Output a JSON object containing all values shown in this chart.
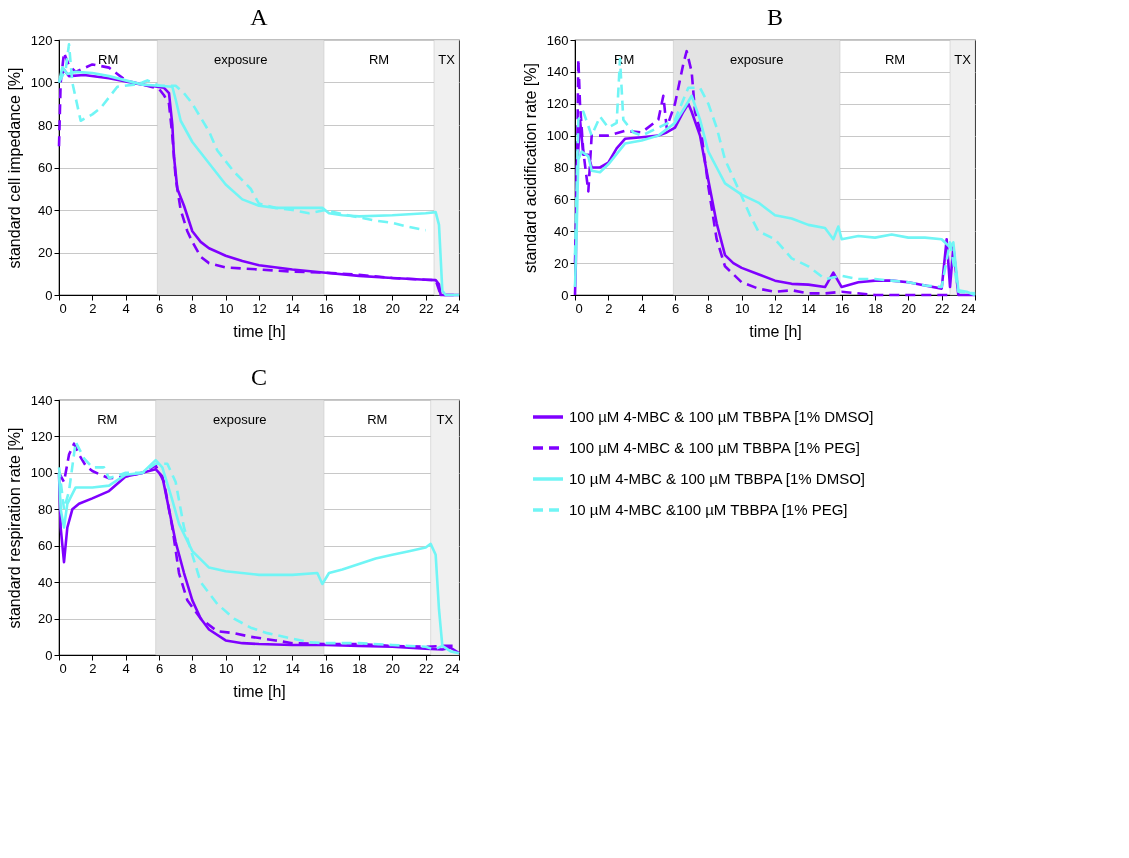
{
  "chart_data": [
    {
      "type": "line",
      "title": "A",
      "annotations": [
        "RM",
        "RM"
      ],
      "xlabel": "time [h]",
      "ylabel": "standard cell impedance [%]",
      "xlim": [
        0,
        24
      ],
      "xticks": [
        0,
        2,
        4,
        6,
        8,
        10,
        12,
        14,
        16,
        18,
        20,
        22,
        24
      ],
      "ylim": [
        0,
        120
      ],
      "yticks": [
        0,
        20,
        40,
        60,
        80,
        100,
        120
      ],
      "grid": "y",
      "legend": false,
      "bands": [
        {
          "axis": "x",
          "from": 5.9,
          "to": 15.9,
          "label": "exposure",
          "color": "#e3e3e3"
        },
        {
          "axis": "x",
          "from": 22.5,
          "to": 24,
          "label": "TX",
          "color": "#f0f0f0"
        }
      ],
      "series": [
        {
          "color": "#7f00ff",
          "line_style": "solid",
          "x": [
            0,
            0.3,
            0.6,
            1.5,
            3,
            4,
            5,
            5.5,
            6.3,
            6.6,
            6.8,
            6.9,
            7.1,
            7.5,
            8,
            8.5,
            9,
            10,
            11,
            12,
            14,
            16,
            18,
            20,
            22,
            22.6,
            22.8,
            22.9,
            24
          ],
          "values": [
            100,
            106,
            103,
            103.5,
            102,
            100.5,
            99,
            98.5,
            97.5,
            95,
            80,
            65,
            50,
            42,
            30,
            25,
            22,
            18.5,
            16,
            14,
            12,
            10.5,
            9,
            8,
            7.2,
            7,
            5,
            0,
            0
          ]
        },
        {
          "color": "#7f00ff",
          "line_style": "dashed",
          "x": [
            0,
            0.1,
            0.3,
            0.6,
            1,
            2,
            3,
            3.5,
            4,
            5,
            5.5,
            6,
            6.3,
            6.6,
            6.8,
            7,
            7.3,
            7.7,
            8,
            8.5,
            9,
            10,
            11,
            12,
            14,
            16,
            18,
            20,
            22,
            22.6,
            22.9,
            24
          ],
          "values": [
            70,
            100,
            114,
            108,
            105,
            108.5,
            107,
            104,
            101,
            99,
            98,
            97,
            94,
            90,
            75,
            55,
            40,
            30,
            25,
            18,
            15,
            13,
            12.5,
            12,
            11,
            10.5,
            9.5,
            8,
            7.2,
            7,
            0,
            0
          ]
        },
        {
          "color": "#70f5f5",
          "line_style": "solid",
          "x": [
            0,
            0.2,
            0.5,
            1,
            2,
            3,
            4,
            5,
            6,
            6.8,
            7,
            7.3,
            8,
            9,
            10,
            11,
            12,
            13,
            14,
            15,
            15.8,
            16.2,
            17,
            18,
            20,
            22,
            22.6,
            22.8,
            23,
            23.2,
            24
          ],
          "values": [
            100,
            107,
            104,
            105,
            104.5,
            103,
            101,
            99,
            98.5,
            98,
            92,
            82,
            72,
            62,
            52,
            45,
            42,
            41,
            41,
            41,
            41,
            38.5,
            37.5,
            37,
            37.5,
            38.5,
            39,
            33,
            2,
            0,
            0
          ]
        },
        {
          "color": "#70f5f5",
          "line_style": "dashed",
          "x": [
            0,
            0.4,
            0.6,
            0.8,
            1.3,
            2,
            2.5,
            3.5,
            4.5,
            5,
            5.3,
            6,
            7,
            7.5,
            8,
            9,
            9.5,
            10.5,
            11.5,
            12,
            13,
            14,
            15,
            16,
            17,
            18,
            19,
            20,
            21,
            22
          ],
          "values": [
            100,
            106,
            118,
            100,
            82,
            85,
            88,
            98,
            99,
            100,
            101,
            98.5,
            98.5,
            95,
            90,
            77,
            68,
            58,
            50,
            43,
            41,
            40,
            38.5,
            40,
            38,
            36.5,
            35,
            34,
            32,
            30.5
          ]
        }
      ]
    },
    {
      "type": "line",
      "title": "B",
      "annotations": [
        "RM",
        "RM"
      ],
      "xlabel": "time [h]",
      "ylabel": "standard acidification rate [%]",
      "xlim": [
        0,
        24
      ],
      "xticks": [
        0,
        2,
        4,
        6,
        8,
        10,
        12,
        14,
        16,
        18,
        20,
        22,
        24
      ],
      "ylim": [
        0,
        160
      ],
      "yticks": [
        0,
        20,
        40,
        60,
        80,
        100,
        120,
        140,
        160
      ],
      "grid": "y",
      "legend": false,
      "bands": [
        {
          "axis": "x",
          "from": 5.9,
          "to": 15.9,
          "label": "exposure",
          "color": "#e3e3e3"
        },
        {
          "axis": "x",
          "from": 22.5,
          "to": 24,
          "label": "TX",
          "color": "#f0f0f0"
        }
      ],
      "series": [
        {
          "color": "#7f00ff",
          "line_style": "solid",
          "x": [
            0,
            0.05,
            0.1,
            0.2,
            0.3,
            0.5,
            0.8,
            1,
            1.5,
            2,
            2.5,
            3,
            4,
            5,
            5.5,
            6,
            6.5,
            6.8,
            7,
            7.5,
            8,
            8.5,
            9,
            9.5,
            10,
            11,
            12,
            13,
            14,
            15,
            15.5,
            16,
            17,
            18,
            19,
            20,
            21,
            22,
            22.3,
            22.5,
            22.7,
            23,
            24
          ],
          "values": [
            0,
            20,
            80,
            92,
            110,
            88,
            88,
            80,
            80,
            83,
            92,
            98,
            99,
            100,
            102,
            105,
            115,
            120,
            115,
            100,
            72,
            45,
            25,
            20,
            17,
            13,
            9,
            7,
            6.5,
            5,
            14,
            5,
            8,
            9,
            9,
            8,
            6,
            4,
            35,
            5,
            30,
            0,
            0
          ]
        },
        {
          "color": "#7f00ff",
          "line_style": "dashed",
          "x": [
            0,
            0.1,
            0.2,
            0.3,
            0.5,
            0.8,
            1,
            1.5,
            2,
            3,
            4,
            5,
            5.3,
            5.5,
            6,
            6.5,
            6.7,
            7,
            7.2,
            7.6,
            8,
            8.5,
            9,
            10,
            11,
            12,
            13,
            14,
            15,
            16,
            18,
            20,
            22,
            22.5
          ],
          "values": [
            20,
            60,
            148,
            120,
            90,
            65,
            100,
            100,
            100,
            103,
            102,
            110,
            125,
            105,
            120,
            145,
            153,
            140,
            115,
            100,
            68,
            35,
            18,
            8,
            4,
            2,
            3,
            1,
            1,
            2,
            0,
            0,
            0,
            0
          ]
        },
        {
          "color": "#70f5f5",
          "line_style": "solid",
          "x": [
            0,
            0.1,
            0.2,
            0.4,
            0.8,
            1,
            1.5,
            2,
            3,
            4,
            5,
            6,
            6.6,
            7,
            7.5,
            8,
            8.5,
            9,
            10,
            11,
            12,
            13,
            14,
            15,
            15.5,
            15.8,
            16,
            17,
            18,
            19,
            20,
            21,
            22,
            22.5,
            22.7,
            23,
            23.5,
            24
          ],
          "values": [
            5,
            40,
            85,
            90,
            87,
            78,
            77,
            82,
            95,
            97,
            100,
            108,
            118,
            125,
            110,
            90,
            80,
            70,
            63,
            58,
            50,
            48,
            44,
            42,
            35,
            43,
            35,
            37,
            36,
            38,
            36,
            36,
            35,
            30,
            33,
            3,
            2,
            0
          ]
        },
        {
          "color": "#70f5f5",
          "line_style": "dashed",
          "x": [
            0,
            0.2,
            0.5,
            1,
            1.5,
            2,
            2.5,
            2.7,
            2.9,
            3.5,
            4,
            5,
            6,
            6.8,
            7.5,
            8,
            8.5,
            9,
            10,
            10.5,
            11,
            12,
            13,
            14,
            15,
            16,
            17,
            18,
            19,
            20,
            21,
            22,
            22.5,
            23,
            24
          ],
          "values": [
            25,
            110,
            115,
            100,
            112,
            105,
            108,
            148,
            110,
            102,
            100,
            105,
            110,
            130,
            130,
            120,
            105,
            85,
            62,
            50,
            40,
            35,
            23,
            18,
            10,
            12,
            10,
            10,
            9,
            8,
            6,
            5,
            33,
            2,
            1
          ]
        }
      ]
    },
    {
      "type": "line",
      "title": "C",
      "annotations": [
        "RM",
        "RM"
      ],
      "xlabel": "time [h]",
      "ylabel": "standard respiration rate [%]",
      "xlim": [
        0,
        24
      ],
      "xticks": [
        0,
        2,
        4,
        6,
        8,
        10,
        12,
        14,
        16,
        18,
        20,
        22,
        24
      ],
      "ylim": [
        0,
        140
      ],
      "yticks": [
        0,
        20,
        40,
        60,
        80,
        100,
        120,
        140
      ],
      "grid": "y",
      "legend": "right",
      "bands": [
        {
          "axis": "x",
          "from": 5.8,
          "to": 15.9,
          "label": "exposure",
          "color": "#e3e3e3"
        },
        {
          "axis": "x",
          "from": 22.3,
          "to": 24,
          "label": "TX",
          "color": "#f0f0f0"
        }
      ],
      "series": [
        {
          "name": "100 µM 4-MBC & 100 µM TBBPA [1% DMSO]",
          "color": "#7f00ff",
          "line_style": "solid",
          "x": [
            0,
            0.1,
            0.3,
            0.5,
            0.8,
            1.2,
            2,
            3,
            4,
            5,
            5.8,
            6.2,
            6.6,
            7,
            7.5,
            8,
            8.5,
            9,
            10,
            11,
            12,
            14,
            16,
            18,
            20,
            22,
            23,
            23.5,
            24
          ],
          "values": [
            100,
            70,
            51,
            70,
            80,
            83,
            86,
            90,
            98,
            100,
            102,
            98,
            80,
            62,
            45,
            30,
            20,
            14,
            8,
            6.5,
            6,
            5.5,
            5.5,
            5,
            4.5,
            3.5,
            3,
            4,
            1
          ]
        },
        {
          "name": "100 µM 4-MBC & 100 µM TBBPA [1% PEG]",
          "color": "#7f00ff",
          "line_style": "dashed",
          "x": [
            0,
            0.3,
            0.6,
            0.9,
            1.2,
            1.6,
            2,
            3,
            4,
            5,
            5.8,
            6.3,
            6.8,
            7.2,
            7.7,
            8.5,
            9.5,
            10.5,
            11.5,
            13,
            14,
            16,
            18,
            20,
            22,
            23,
            23.8
          ],
          "values": [
            100,
            95,
            110,
            116,
            110,
            104,
            101,
            97,
            98,
            100,
            104,
            95,
            70,
            45,
            30,
            20,
            13,
            12,
            10,
            8,
            6.5,
            6,
            6,
            5,
            4.5,
            5,
            5
          ]
        },
        {
          "name": "10 µM 4-MBC & 100 µM TBBPA  [1% DMSO]",
          "color": "#70f5f5",
          "line_style": "solid",
          "x": [
            0,
            0.1,
            0.3,
            0.5,
            1,
            2,
            3,
            4,
            5,
            5.8,
            6.2,
            6.8,
            7.2,
            8,
            9,
            10,
            12,
            14,
            15.5,
            15.8,
            16.2,
            17,
            18,
            19,
            20,
            21,
            22,
            22.3,
            22.6,
            22.8,
            23,
            23.5,
            24
          ],
          "values": [
            100,
            80,
            70,
            83,
            92,
            92,
            93,
            99,
            100,
            107,
            103,
            85,
            72,
            57,
            48,
            46,
            44,
            44,
            45,
            39,
            45,
            47,
            50,
            53,
            55,
            57,
            59,
            61,
            55,
            25,
            5,
            2,
            1
          ]
        },
        {
          "name": "10 µM 4-MBC &100 µM TBBPA [1% PEG]",
          "color": "#70f5f5",
          "line_style": "dashed",
          "x": [
            0,
            0.3,
            0.6,
            1,
            1.5,
            2,
            2.7,
            3,
            4,
            5,
            5.8,
            6.5,
            7,
            7.5,
            8,
            8.5,
            9.5,
            10.5,
            11.5,
            12.5,
            14,
            15,
            16,
            18,
            20,
            22,
            22.5,
            23
          ],
          "values": [
            103,
            80,
            90,
            117,
            108,
            103,
            103,
            97,
            100,
            100,
            105,
            105,
            95,
            70,
            55,
            40,
            28,
            20,
            15,
            12,
            9,
            7,
            6.5,
            6.5,
            5.5,
            4.5,
            3,
            5
          ]
        }
      ]
    }
  ]
}
